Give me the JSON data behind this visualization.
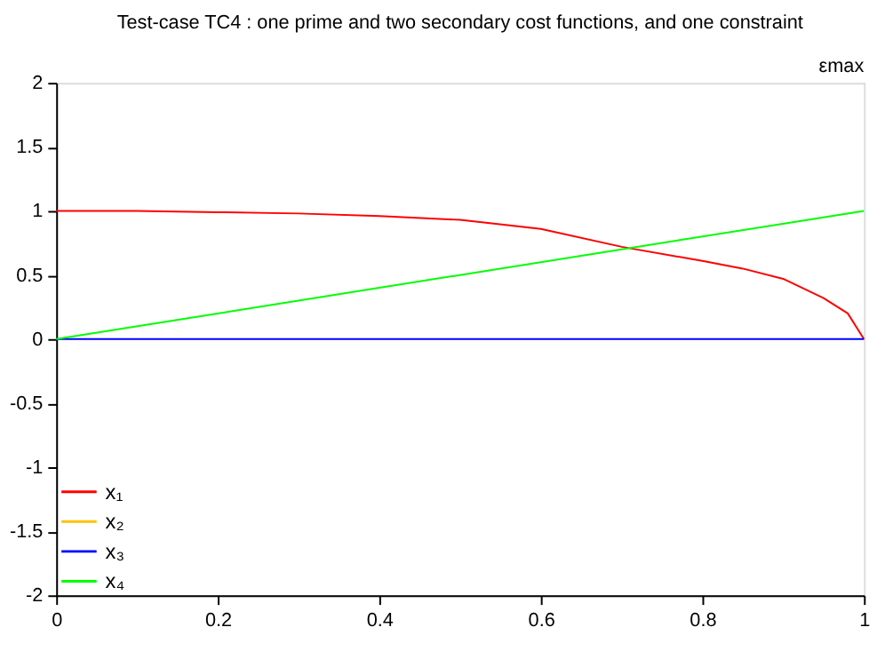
{
  "chart_data": {
    "type": "line",
    "title": "Test-case TC4 : one prime and two secondary cost functions, and one constraint",
    "xlabel": "εmax",
    "xlim": [
      0,
      1
    ],
    "xticks": [
      0,
      0.2,
      0.4,
      0.6,
      0.8,
      1
    ],
    "ylim": [
      -2,
      2
    ],
    "yticks": [
      -2,
      -1.5,
      -1,
      -0.5,
      0,
      0.5,
      1,
      1.5,
      2
    ],
    "grid": false,
    "legend": "bottom left",
    "marker": "none",
    "line_style": "solid",
    "series": [
      {
        "name": "x₁",
        "color": "#ff0000",
        "x": [
          0,
          0.1,
          0.2,
          0.3,
          0.4,
          0.5,
          0.6,
          0.7,
          0.8,
          0.85,
          0.9,
          0.95,
          0.98,
          1
        ],
        "values": [
          1,
          1,
          0.99,
          0.98,
          0.96,
          0.93,
          0.86,
          0.72,
          0.61,
          0.55,
          0.47,
          0.32,
          0.2,
          0
        ]
      },
      {
        "name": "x₂",
        "color": "#ffc000"
      },
      {
        "name": "x₃",
        "color": "#0000ff",
        "x": [
          0,
          1
        ],
        "values": [
          0,
          0
        ]
      },
      {
        "name": "x₄",
        "color": "#00ff00",
        "x": [
          0,
          1
        ],
        "values": [
          0,
          1
        ]
      }
    ]
  }
}
